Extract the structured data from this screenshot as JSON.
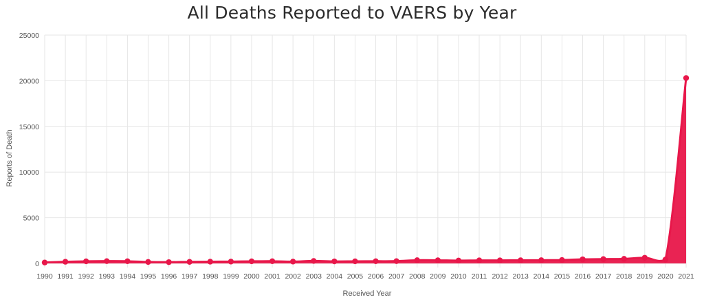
{
  "chart_data": {
    "type": "area",
    "title": "All Deaths Reported to VAERS by Year",
    "xlabel": "Received Year",
    "ylabel": "Reports of Death",
    "ylim": [
      0,
      25000
    ],
    "y_ticks": [
      0,
      5000,
      10000,
      15000,
      20000,
      25000
    ],
    "grid": true,
    "categories": [
      "1990",
      "1991",
      "1992",
      "1993",
      "1994",
      "1995",
      "1996",
      "1997",
      "1998",
      "1999",
      "2000",
      "2001",
      "2002",
      "2003",
      "2004",
      "2005",
      "2006",
      "2007",
      "2008",
      "2009",
      "2010",
      "2011",
      "2012",
      "2013",
      "2014",
      "2015",
      "2016",
      "2017",
      "2018",
      "2019",
      "2020",
      "2021"
    ],
    "series": [
      {
        "name": "Reports of Death",
        "color": "#e8174a",
        "values": [
          100,
          180,
          230,
          250,
          240,
          160,
          140,
          170,
          190,
          200,
          230,
          240,
          200,
          270,
          220,
          230,
          240,
          250,
          350,
          340,
          310,
          330,
          330,
          340,
          350,
          370,
          450,
          470,
          500,
          620,
          420,
          20300
        ]
      }
    ]
  }
}
